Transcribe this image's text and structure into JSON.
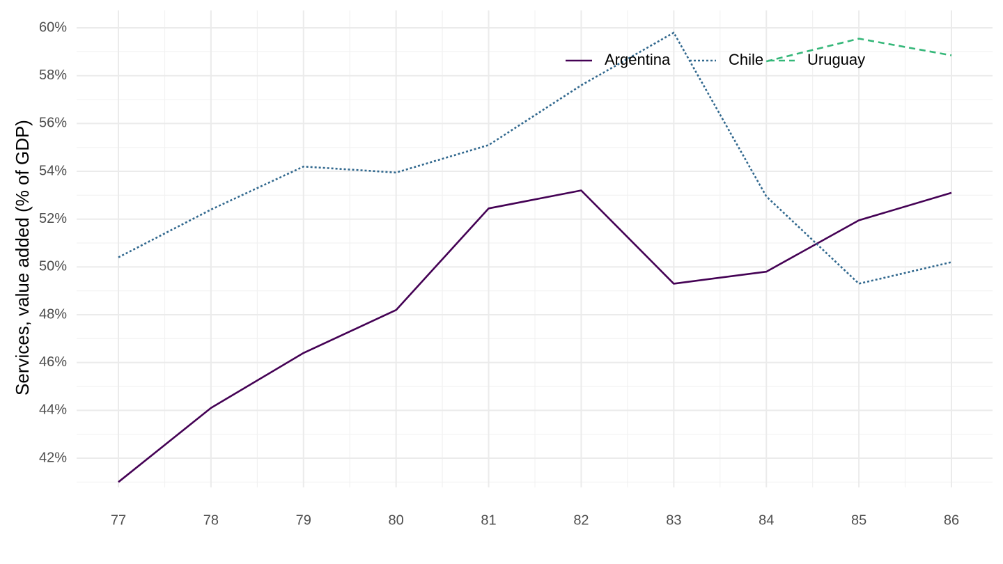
{
  "chart_data": {
    "type": "line",
    "title": "",
    "xlabel": "",
    "ylabel": "Services, value added (% of GDP)",
    "x": [
      "77",
      "78",
      "79",
      "80",
      "81",
      "82",
      "83",
      "84",
      "85",
      "86"
    ],
    "y_ticks": [
      "42%",
      "44%",
      "46%",
      "48%",
      "50%",
      "52%",
      "54%",
      "56%",
      "58%",
      "60%"
    ],
    "ylim": [
      40.9,
      60.15
    ],
    "grid": true,
    "legend_position": "top-right",
    "series": [
      {
        "name": "Argentina",
        "color": "#440154",
        "dash": "solid",
        "values": [
          41.0,
          44.1,
          46.4,
          48.2,
          52.45,
          53.2,
          49.3,
          49.8,
          51.95,
          53.1
        ]
      },
      {
        "name": "Chile",
        "color": "#31688E",
        "dash": "dotted",
        "values": [
          50.4,
          52.4,
          54.2,
          53.95,
          55.1,
          57.6,
          59.8,
          52.95,
          49.3,
          50.2
        ]
      },
      {
        "name": "Uruguay",
        "color": "#35B779",
        "dash": "dashed",
        "values": [
          null,
          null,
          null,
          null,
          null,
          null,
          null,
          58.6,
          59.55,
          58.85
        ]
      }
    ]
  }
}
